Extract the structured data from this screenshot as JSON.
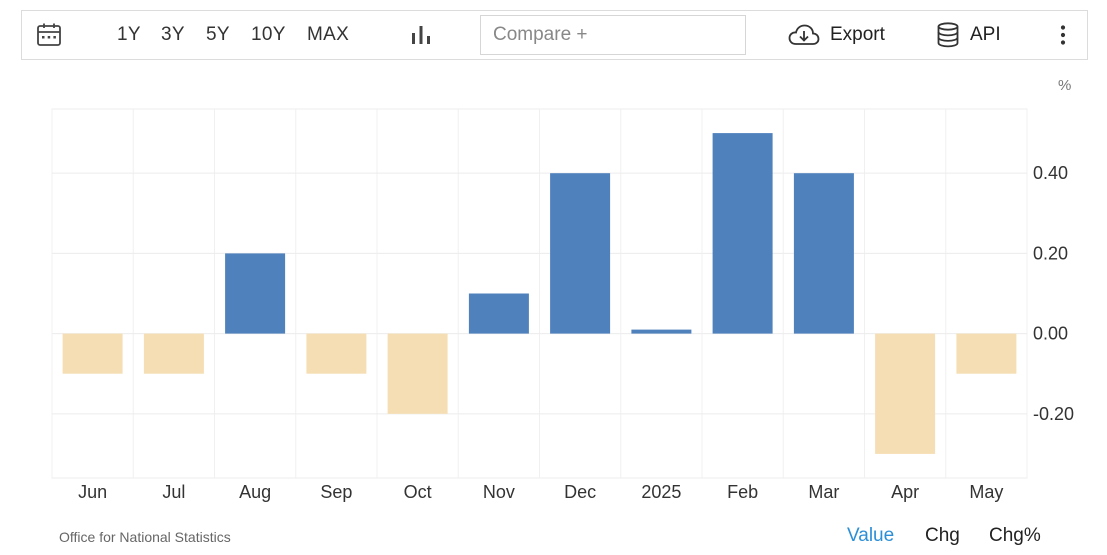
{
  "toolbar": {
    "calendar_icon": "calendar-icon",
    "ranges": [
      "1Y",
      "3Y",
      "5Y",
      "10Y",
      "MAX"
    ],
    "chart_type_icon": "bar-chart-icon",
    "compare_placeholder": "Compare +",
    "export_label": "Export",
    "export_icon": "cloud-download-icon",
    "api_label": "API",
    "api_icon": "database-icon",
    "more_icon": "more-vertical-icon"
  },
  "chart_data": {
    "type": "bar",
    "unit_label": "%",
    "categories": [
      "Jun",
      "Jul",
      "Aug",
      "Sep",
      "Oct",
      "Nov",
      "Dec",
      "2025",
      "Feb",
      "Mar",
      "Apr",
      "May"
    ],
    "values": [
      -0.1,
      -0.1,
      0.2,
      -0.1,
      -0.2,
      0.1,
      0.4,
      0.01,
      0.5,
      0.4,
      -0.3,
      -0.1
    ],
    "yticks": [
      -0.2,
      0.0,
      0.2,
      0.4
    ],
    "ytick_labels": [
      "-0.20",
      "0.00",
      "0.20",
      "0.40"
    ],
    "ylim": [
      -0.36,
      0.56
    ],
    "positive_color": "#4f81bd",
    "negative_color": "#f5deb3",
    "grid": true,
    "y_axis_position": "right"
  },
  "footer": {
    "source": "Office for National Statistics",
    "tabs": [
      "Value",
      "Chg",
      "Chg%"
    ],
    "active_tab_color": "#2b8fd8"
  }
}
